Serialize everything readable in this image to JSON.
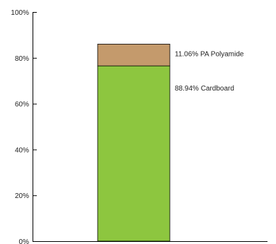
{
  "chart_data": {
    "type": "bar",
    "stacked": true,
    "categories": [
      ""
    ],
    "series": [
      {
        "name": "Cardboard",
        "values": [
          76.5
        ],
        "color": "#8dc63f"
      },
      {
        "name": "PA Polyamide",
        "values": [
          9.5
        ],
        "color": "#c49a6c"
      }
    ],
    "data_labels": [
      "88.94% Cardboard",
      "11.06% PA Polyamide"
    ],
    "y_ticks": [
      "0%",
      "20%",
      "40%",
      "60%",
      "80%",
      "100%"
    ],
    "ylim": [
      0,
      100
    ],
    "grid": false,
    "legend": "none",
    "title": "",
    "xlabel": "",
    "ylabel": ""
  }
}
